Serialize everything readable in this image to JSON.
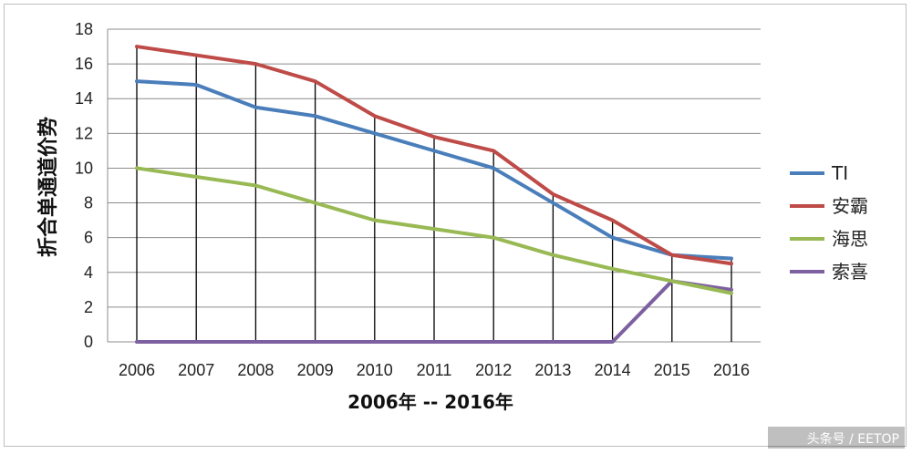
{
  "chart_data": {
    "type": "line",
    "title": "",
    "xlabel": "2006年 -- 2016年",
    "ylabel": "折合单通道价势",
    "ylim": [
      0,
      18
    ],
    "yticks": [
      0,
      2,
      4,
      6,
      8,
      10,
      12,
      14,
      16,
      18
    ],
    "categories": [
      "2006",
      "2007",
      "2008",
      "2009",
      "2010",
      "2011",
      "2012",
      "2013",
      "2014",
      "2015",
      "2016"
    ],
    "grid": true,
    "legend_position": "right",
    "series": [
      {
        "name": "TI",
        "color": "#4a7ebb",
        "values": [
          15,
          14.8,
          13.5,
          13,
          12,
          11,
          10,
          8,
          6,
          5,
          4.8
        ]
      },
      {
        "name": "安霸",
        "color": "#be4b48",
        "values": [
          17,
          16.5,
          16,
          15,
          13,
          11.8,
          11,
          8.5,
          7,
          5,
          4.5
        ]
      },
      {
        "name": "海思",
        "color": "#98b954",
        "values": [
          10,
          9.5,
          9,
          8,
          7,
          6.5,
          6,
          5,
          4.2,
          3.5,
          2.8
        ]
      },
      {
        "name": "索喜",
        "color": "#7d60a0",
        "values": [
          0,
          0,
          0,
          0,
          0,
          0,
          0,
          0,
          0,
          3.5,
          3
        ]
      }
    ]
  },
  "watermark": "头条号 / EETOP"
}
